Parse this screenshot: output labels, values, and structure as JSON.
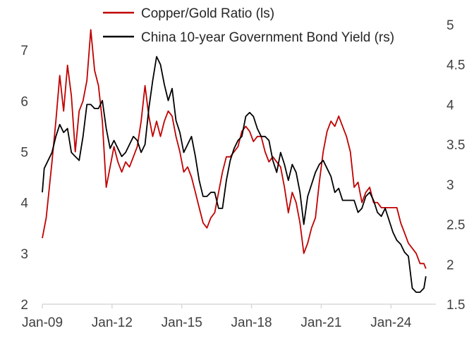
{
  "chart_data": {
    "type": "line",
    "title": "",
    "xlabel": "",
    "ylabel_left": "",
    "ylabel_right": "",
    "x_ticks": [
      "Jan-09",
      "Jan-12",
      "Jan-15",
      "Jan-18",
      "Jan-21",
      "Jan-24"
    ],
    "y_left": {
      "ticks": [
        "2",
        "3",
        "4",
        "5",
        "6",
        "7"
      ],
      "range": [
        2,
        7.5
      ]
    },
    "y_right": {
      "ticks": [
        "1.5",
        "2",
        "2.5",
        "3",
        "3.5",
        "4",
        "4.5",
        "5"
      ],
      "range": [
        1.5,
        5
      ]
    },
    "legend_position": "top",
    "grid": false,
    "series": [
      {
        "name": "Copper/Gold Ratio (ls)",
        "axis": "left",
        "color": "#c00000",
        "points": [
          [
            "2009-01",
            3.3
          ],
          [
            "2009-03",
            3.7
          ],
          [
            "2009-06",
            4.8
          ],
          [
            "2009-08",
            5.6
          ],
          [
            "2009-10",
            6.5
          ],
          [
            "2009-12",
            5.8
          ],
          [
            "2010-02",
            6.7
          ],
          [
            "2010-04",
            6.1
          ],
          [
            "2010-06",
            5.0
          ],
          [
            "2010-08",
            5.8
          ],
          [
            "2010-10",
            6.0
          ],
          [
            "2010-12",
            6.4
          ],
          [
            "2011-02",
            7.4
          ],
          [
            "2011-04",
            6.6
          ],
          [
            "2011-06",
            6.3
          ],
          [
            "2011-08",
            5.6
          ],
          [
            "2011-10",
            4.3
          ],
          [
            "2011-12",
            4.7
          ],
          [
            "2012-02",
            5.1
          ],
          [
            "2012-04",
            4.8
          ],
          [
            "2012-06",
            4.6
          ],
          [
            "2012-08",
            4.8
          ],
          [
            "2012-10",
            4.7
          ],
          [
            "2012-12",
            4.9
          ],
          [
            "2013-02",
            5.1
          ],
          [
            "2013-04",
            5.6
          ],
          [
            "2013-06",
            6.3
          ],
          [
            "2013-08",
            5.7
          ],
          [
            "2013-10",
            5.3
          ],
          [
            "2013-12",
            5.6
          ],
          [
            "2014-02",
            5.3
          ],
          [
            "2014-04",
            5.6
          ],
          [
            "2014-06",
            5.8
          ],
          [
            "2014-08",
            5.7
          ],
          [
            "2014-10",
            5.3
          ],
          [
            "2014-12",
            5.0
          ],
          [
            "2015-02",
            4.6
          ],
          [
            "2015-04",
            4.7
          ],
          [
            "2015-06",
            4.5
          ],
          [
            "2015-08",
            4.2
          ],
          [
            "2015-10",
            3.9
          ],
          [
            "2015-12",
            3.6
          ],
          [
            "2016-02",
            3.5
          ],
          [
            "2016-04",
            3.7
          ],
          [
            "2016-06",
            3.8
          ],
          [
            "2016-08",
            4.2
          ],
          [
            "2016-10",
            4.6
          ],
          [
            "2016-12",
            4.9
          ],
          [
            "2017-02",
            4.9
          ],
          [
            "2017-04",
            5.0
          ],
          [
            "2017-06",
            5.1
          ],
          [
            "2017-08",
            5.4
          ],
          [
            "2017-10",
            5.5
          ],
          [
            "2017-12",
            5.4
          ],
          [
            "2018-02",
            5.2
          ],
          [
            "2018-04",
            5.3
          ],
          [
            "2018-06",
            5.3
          ],
          [
            "2018-08",
            5.0
          ],
          [
            "2018-10",
            4.8
          ],
          [
            "2018-12",
            4.9
          ],
          [
            "2019-02",
            4.8
          ],
          [
            "2019-04",
            4.7
          ],
          [
            "2019-06",
            4.3
          ],
          [
            "2019-08",
            3.8
          ],
          [
            "2019-10",
            4.2
          ],
          [
            "2019-12",
            4.0
          ],
          [
            "2020-02",
            3.6
          ],
          [
            "2020-04",
            3.0
          ],
          [
            "2020-06",
            3.2
          ],
          [
            "2020-08",
            3.5
          ],
          [
            "2020-10",
            3.7
          ],
          [
            "2020-12",
            4.4
          ],
          [
            "2021-02",
            5.0
          ],
          [
            "2021-04",
            5.4
          ],
          [
            "2021-06",
            5.6
          ],
          [
            "2021-08",
            5.5
          ],
          [
            "2021-10",
            5.7
          ],
          [
            "2021-12",
            5.5
          ],
          [
            "2022-02",
            5.3
          ],
          [
            "2022-04",
            5.0
          ],
          [
            "2022-06",
            4.3
          ],
          [
            "2022-08",
            4.4
          ],
          [
            "2022-10",
            4.0
          ],
          [
            "2022-12",
            4.2
          ],
          [
            "2023-02",
            4.3
          ],
          [
            "2023-04",
            4.0
          ],
          [
            "2023-06",
            4.0
          ],
          [
            "2023-08",
            3.9
          ],
          [
            "2023-10",
            3.9
          ],
          [
            "2023-12",
            3.9
          ],
          [
            "2024-02",
            3.9
          ],
          [
            "2024-04",
            3.9
          ],
          [
            "2024-06",
            3.6
          ],
          [
            "2024-08",
            3.4
          ],
          [
            "2024-10",
            3.2
          ],
          [
            "2024-12",
            3.1
          ],
          [
            "2025-02",
            3.0
          ],
          [
            "2025-04",
            2.8
          ],
          [
            "2025-06",
            2.8
          ],
          [
            "2025-07",
            2.7
          ]
        ]
      },
      {
        "name": "China 10-year Government Bond Yield (rs)",
        "axis": "right",
        "color": "#000000",
        "points": [
          [
            "2009-01",
            2.9
          ],
          [
            "2009-02",
            3.2
          ],
          [
            "2009-04",
            3.3
          ],
          [
            "2009-06",
            3.4
          ],
          [
            "2009-08",
            3.6
          ],
          [
            "2009-10",
            3.75
          ],
          [
            "2009-12",
            3.65
          ],
          [
            "2010-02",
            3.7
          ],
          [
            "2010-04",
            3.4
          ],
          [
            "2010-06",
            3.35
          ],
          [
            "2010-08",
            3.3
          ],
          [
            "2010-10",
            3.6
          ],
          [
            "2010-12",
            4.0
          ],
          [
            "2011-02",
            4.0
          ],
          [
            "2011-04",
            3.95
          ],
          [
            "2011-06",
            3.95
          ],
          [
            "2011-08",
            4.05
          ],
          [
            "2011-10",
            3.7
          ],
          [
            "2011-12",
            3.45
          ],
          [
            "2012-02",
            3.55
          ],
          [
            "2012-04",
            3.45
          ],
          [
            "2012-06",
            3.35
          ],
          [
            "2012-08",
            3.4
          ],
          [
            "2012-10",
            3.5
          ],
          [
            "2012-12",
            3.6
          ],
          [
            "2013-02",
            3.55
          ],
          [
            "2013-04",
            3.4
          ],
          [
            "2013-06",
            3.5
          ],
          [
            "2013-08",
            3.95
          ],
          [
            "2013-10",
            4.3
          ],
          [
            "2013-12",
            4.6
          ],
          [
            "2014-02",
            4.5
          ],
          [
            "2014-04",
            4.25
          ],
          [
            "2014-06",
            4.05
          ],
          [
            "2014-08",
            4.2
          ],
          [
            "2014-10",
            3.8
          ],
          [
            "2014-12",
            3.65
          ],
          [
            "2015-02",
            3.4
          ],
          [
            "2015-04",
            3.5
          ],
          [
            "2015-06",
            3.6
          ],
          [
            "2015-08",
            3.35
          ],
          [
            "2015-10",
            3.05
          ],
          [
            "2015-12",
            2.85
          ],
          [
            "2016-02",
            2.85
          ],
          [
            "2016-04",
            2.9
          ],
          [
            "2016-06",
            2.9
          ],
          [
            "2016-08",
            2.7
          ],
          [
            "2016-10",
            2.7
          ],
          [
            "2016-12",
            3.05
          ],
          [
            "2017-02",
            3.3
          ],
          [
            "2017-04",
            3.45
          ],
          [
            "2017-06",
            3.55
          ],
          [
            "2017-08",
            3.6
          ],
          [
            "2017-10",
            3.85
          ],
          [
            "2017-12",
            3.9
          ],
          [
            "2018-02",
            3.85
          ],
          [
            "2018-04",
            3.7
          ],
          [
            "2018-06",
            3.6
          ],
          [
            "2018-08",
            3.6
          ],
          [
            "2018-10",
            3.55
          ],
          [
            "2018-12",
            3.3
          ],
          [
            "2019-02",
            3.15
          ],
          [
            "2019-04",
            3.4
          ],
          [
            "2019-06",
            3.25
          ],
          [
            "2019-08",
            3.05
          ],
          [
            "2019-10",
            3.25
          ],
          [
            "2019-12",
            3.15
          ],
          [
            "2020-02",
            2.9
          ],
          [
            "2020-04",
            2.5
          ],
          [
            "2020-06",
            2.85
          ],
          [
            "2020-08",
            3.0
          ],
          [
            "2020-10",
            3.15
          ],
          [
            "2020-12",
            3.25
          ],
          [
            "2021-02",
            3.3
          ],
          [
            "2021-04",
            3.2
          ],
          [
            "2021-06",
            3.1
          ],
          [
            "2021-08",
            2.9
          ],
          [
            "2021-10",
            2.95
          ],
          [
            "2021-12",
            2.8
          ],
          [
            "2022-02",
            2.8
          ],
          [
            "2022-04",
            2.8
          ],
          [
            "2022-06",
            2.8
          ],
          [
            "2022-08",
            2.65
          ],
          [
            "2022-10",
            2.7
          ],
          [
            "2022-12",
            2.85
          ],
          [
            "2023-02",
            2.9
          ],
          [
            "2023-04",
            2.8
          ],
          [
            "2023-06",
            2.65
          ],
          [
            "2023-08",
            2.6
          ],
          [
            "2023-10",
            2.7
          ],
          [
            "2023-12",
            2.55
          ],
          [
            "2024-02",
            2.4
          ],
          [
            "2024-04",
            2.3
          ],
          [
            "2024-06",
            2.25
          ],
          [
            "2024-08",
            2.15
          ],
          [
            "2024-10",
            2.1
          ],
          [
            "2024-12",
            1.7
          ],
          [
            "2025-02",
            1.65
          ],
          [
            "2025-04",
            1.65
          ],
          [
            "2025-06",
            1.7
          ],
          [
            "2025-07",
            1.85
          ]
        ]
      }
    ]
  }
}
